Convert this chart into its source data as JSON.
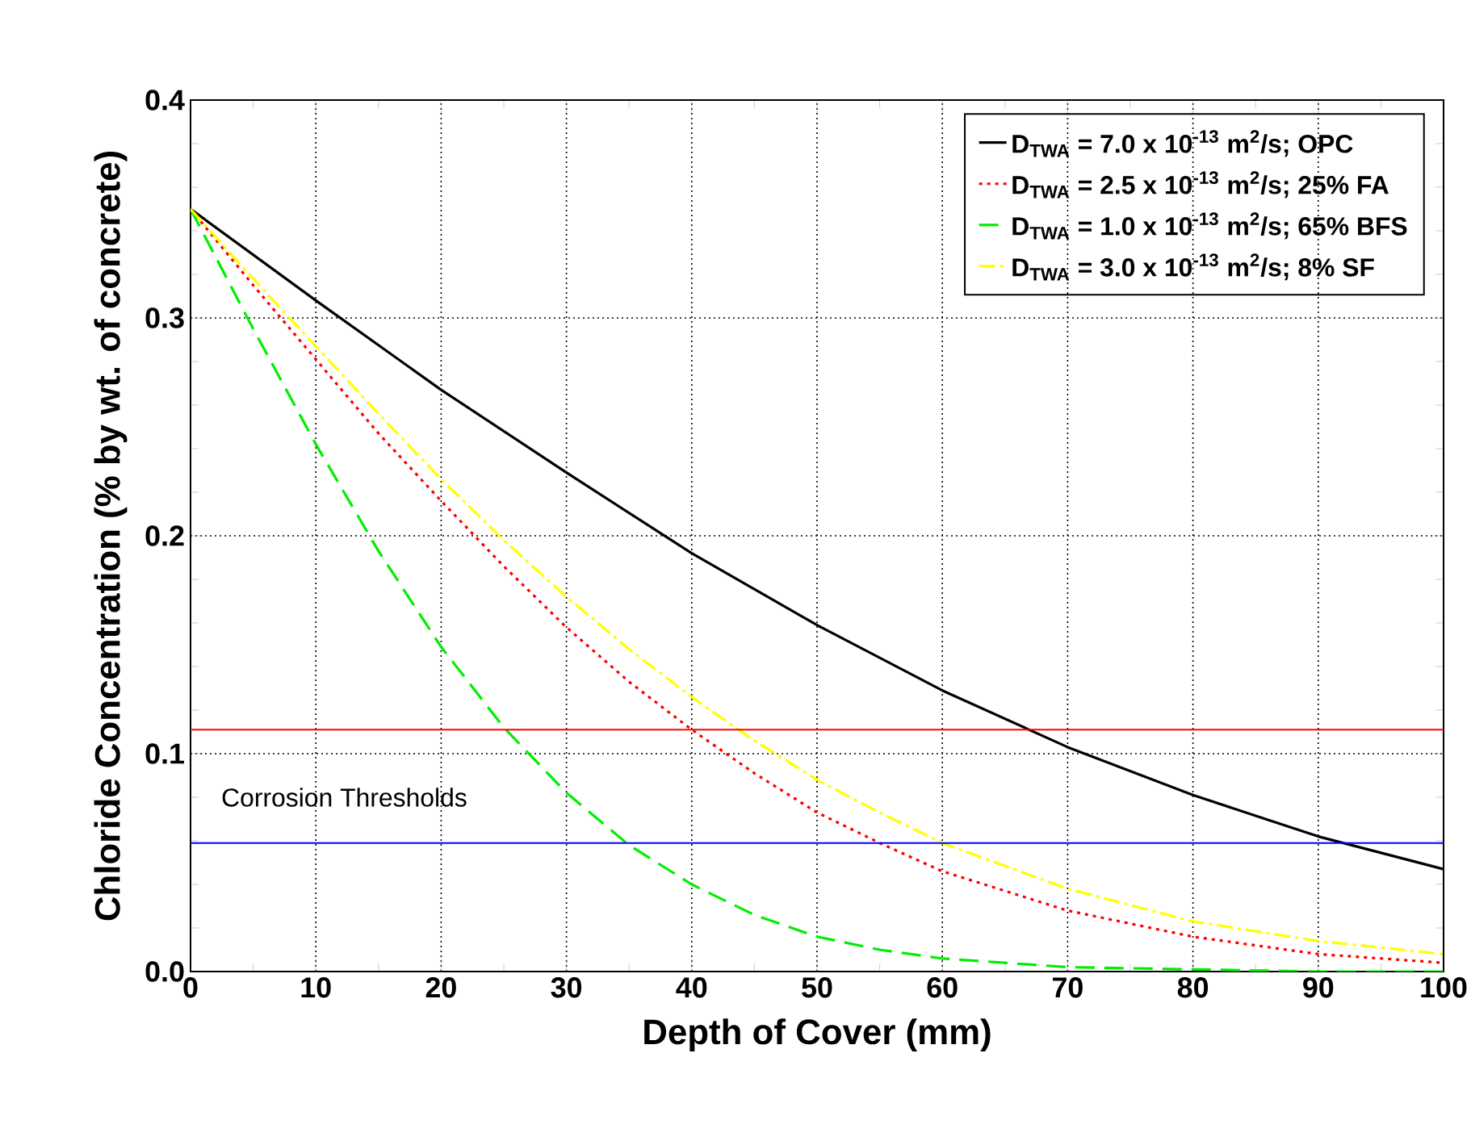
{
  "chart_data": {
    "type": "line",
    "xlabel": "Depth of Cover (mm)",
    "ylabel": "Chloride Concentration (% by wt. of concrete)",
    "xlim": [
      0,
      100
    ],
    "ylim": [
      0,
      0.4
    ],
    "xticks": [
      0,
      10,
      20,
      30,
      40,
      50,
      60,
      70,
      80,
      90,
      100
    ],
    "yticks": [
      {
        "value": 0,
        "label": "0.0"
      },
      {
        "value": 0.1,
        "label": "0.1"
      },
      {
        "value": 0.2,
        "label": "0.2"
      },
      {
        "value": 0.3,
        "label": "0.3"
      },
      {
        "value": 0.4,
        "label": "0.4"
      }
    ],
    "grid": true,
    "legend": "top right",
    "marker": "none",
    "series": [
      {
        "name": "D$_{TWA}$ = 7.0 x 10$^{-13}$ m$^{2}$/s; OPC",
        "color": "#000000",
        "line_style": "solid",
        "x": [
          0,
          10,
          20,
          30,
          40,
          50,
          60,
          70,
          80,
          90,
          100
        ],
        "values": [
          0.35,
          0.308,
          0.267,
          0.229,
          0.192,
          0.159,
          0.129,
          0.103,
          0.081,
          0.062,
          0.047
        ]
      },
      {
        "name": "D$_{TWA}$ = 2.5 x 10$^{-13}$ m$^{2}$/s; 25% FA",
        "color": "#ff0000",
        "line_style": "dotted",
        "x": [
          0,
          5,
          10,
          15,
          20,
          25,
          30,
          35,
          40,
          45,
          50,
          55,
          60,
          70,
          80,
          90,
          100
        ],
        "values": [
          0.35,
          0.315,
          0.281,
          0.247,
          0.216,
          0.186,
          0.158,
          0.133,
          0.111,
          0.091,
          0.073,
          0.059,
          0.046,
          0.028,
          0.016,
          0.008,
          0.004
        ]
      },
      {
        "name": "D$_{TWA}$ = 1.0 x 10$^{-13}$ m$^{2}$/s; 65% BFS",
        "color": "#00ee00",
        "line_style": "dashed",
        "x": [
          0,
          5,
          10,
          15,
          20,
          25,
          30,
          35,
          40,
          45,
          50,
          55,
          60,
          70,
          80,
          90,
          100
        ],
        "values": [
          0.35,
          0.295,
          0.242,
          0.193,
          0.149,
          0.112,
          0.082,
          0.058,
          0.04,
          0.026,
          0.016,
          0.01,
          0.006,
          0.002,
          0.001,
          0.0,
          0.0
        ]
      },
      {
        "name": "D$_{TWA}$ = 3.0 x 10$^{-13}$ m$^{2}$/s; 8% SF",
        "color": "#ffff00",
        "line_style": "dashdot",
        "x": [
          0,
          5,
          10,
          15,
          20,
          25,
          30,
          35,
          40,
          45,
          50,
          55,
          60,
          70,
          80,
          90,
          100
        ],
        "values": [
          0.35,
          0.318,
          0.287,
          0.256,
          0.226,
          0.198,
          0.172,
          0.148,
          0.126,
          0.106,
          0.088,
          0.073,
          0.059,
          0.038,
          0.023,
          0.014,
          0.008
        ]
      }
    ],
    "ref_lines": [
      {
        "axis": "y",
        "value": 0.111,
        "color": "#ff0000"
      },
      {
        "axis": "y",
        "value": 0.059,
        "color": "#0000ff"
      }
    ],
    "annotations": [
      "Corrosion Thresholds"
    ]
  }
}
